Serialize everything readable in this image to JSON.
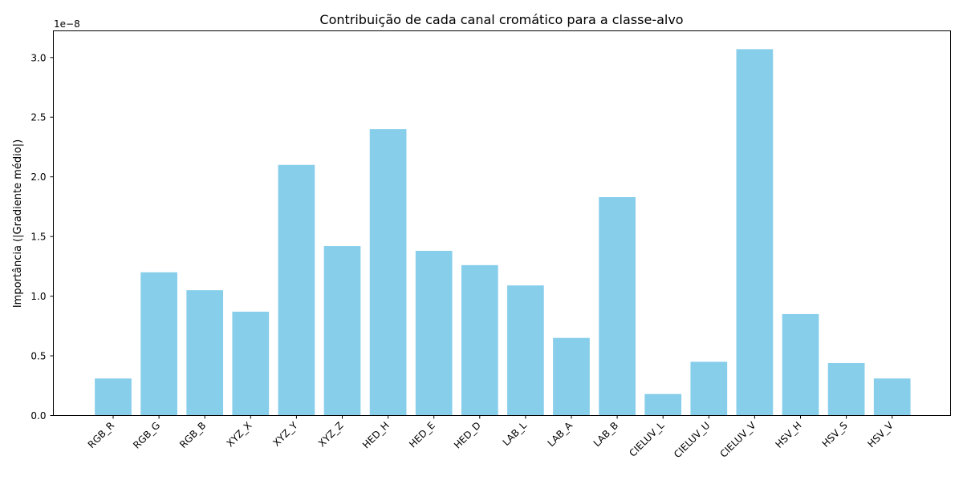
{
  "chart_data": {
    "type": "bar",
    "title": "Contribuição de cada canal cromático para a classe-alvo",
    "xlabel": "",
    "ylabel": "Importância (|Gradiente médio|)",
    "scale_label": "1e−8",
    "categories": [
      "RGB_R",
      "RGB_G",
      "RGB_B",
      "XYZ_X",
      "XYZ_Y",
      "XYZ_Z",
      "HED_H",
      "HED_E",
      "HED_D",
      "LAB_L",
      "LAB_A",
      "LAB_B",
      "CIELUV_L",
      "CIELUV_U",
      "CIELUV_V",
      "HSV_H",
      "HSV_S",
      "HSV_V"
    ],
    "values": [
      0.31,
      1.2,
      1.05,
      0.87,
      2.1,
      1.42,
      2.4,
      1.38,
      1.26,
      1.09,
      0.65,
      1.83,
      0.18,
      0.45,
      3.07,
      0.85,
      0.44,
      0.31
    ],
    "yticks": [
      0.0,
      0.5,
      1.0,
      1.5,
      2.0,
      2.5,
      3.0
    ],
    "ytick_labels": [
      "0.0",
      "0.5",
      "1.0",
      "1.5",
      "2.0",
      "2.5",
      "3.0"
    ],
    "ylim": [
      0,
      3.2235
    ],
    "grid": false,
    "legend": "none",
    "bar_color": "#87ceeb"
  }
}
